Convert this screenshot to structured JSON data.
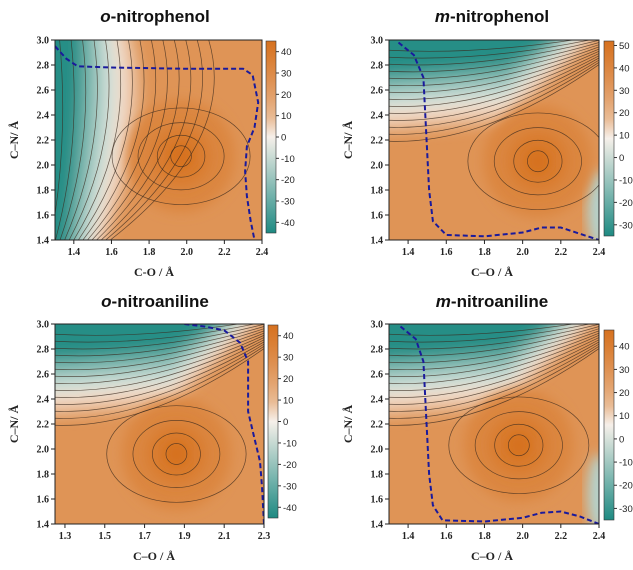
{
  "colors": {
    "low": "#1e8a82",
    "mid": "#f6f0ea",
    "high": "#d6711f",
    "contour": "#3a2a1e",
    "dashed_path": "#1a1a9c"
  },
  "chart_data": [
    {
      "type": "heatmap",
      "title_prefix": "o",
      "title_suffix": "-nitrophenol",
      "xlabel": "C-O / Å",
      "ylabel": "C–N/ Å",
      "xlim": [
        1.3,
        2.4
      ],
      "ylim": [
        1.4,
        3.0
      ],
      "x_ticks": [
        "1.4",
        "1.6",
        "1.8",
        "2.0",
        "2.2",
        "2.4"
      ],
      "y_ticks": [
        "1.4",
        "1.6",
        "1.8",
        "2.0",
        "2.2",
        "2.4",
        "2.6",
        "2.8",
        "3.0"
      ],
      "colorbar_ticks": [
        "40",
        "30",
        "20",
        "10",
        "0",
        "-10",
        "-20",
        "-30",
        "-40"
      ],
      "colorbar_range": [
        -45,
        45
      ],
      "minimum": {
        "x": 1.97,
        "y": 2.07
      },
      "path": [
        [
          1.3,
          2.95
        ],
        [
          1.36,
          2.85
        ],
        [
          1.42,
          2.79
        ],
        [
          1.6,
          2.78
        ],
        [
          2.0,
          2.77
        ],
        [
          2.3,
          2.77
        ],
        [
          2.35,
          2.72
        ],
        [
          2.38,
          2.5
        ],
        [
          2.36,
          2.3
        ],
        [
          2.32,
          2.15
        ],
        [
          2.31,
          1.95
        ],
        [
          2.32,
          1.75
        ],
        [
          2.34,
          1.55
        ],
        [
          2.36,
          1.4
        ]
      ]
    },
    {
      "type": "heatmap",
      "title_prefix": "m",
      "title_suffix": "-nitrophenol",
      "xlabel": "C–O / Å",
      "ylabel": "C–N/ Å",
      "xlim": [
        1.3,
        2.4
      ],
      "ylim": [
        1.4,
        3.0
      ],
      "x_ticks": [
        "1.4",
        "1.6",
        "1.8",
        "2.0",
        "2.2",
        "2.4"
      ],
      "y_ticks": [
        "1.4",
        "1.6",
        "1.8",
        "2.0",
        "2.2",
        "2.4",
        "2.6",
        "2.8",
        "3.0"
      ],
      "colorbar_ticks": [
        "50",
        "40",
        "30",
        "20",
        "10",
        "0",
        "-10",
        "-20",
        "-30"
      ],
      "colorbar_range": [
        -35,
        52
      ],
      "minimum": {
        "x": 2.08,
        "y": 2.03
      },
      "path": [
        [
          1.35,
          2.98
        ],
        [
          1.43,
          2.88
        ],
        [
          1.48,
          2.7
        ],
        [
          1.49,
          2.4
        ],
        [
          1.5,
          2.1
        ],
        [
          1.51,
          1.8
        ],
        [
          1.53,
          1.55
        ],
        [
          1.6,
          1.44
        ],
        [
          1.8,
          1.43
        ],
        [
          2.0,
          1.46
        ],
        [
          2.1,
          1.5
        ],
        [
          2.2,
          1.5
        ],
        [
          2.3,
          1.45
        ],
        [
          2.4,
          1.4
        ]
      ]
    },
    {
      "type": "heatmap",
      "title_prefix": "o",
      "title_suffix": "-nitroaniline",
      "xlabel": "C–O / Å",
      "ylabel": "C–N/ Å",
      "xlim": [
        1.25,
        2.3
      ],
      "ylim": [
        1.4,
        3.0
      ],
      "x_ticks": [
        "1.3",
        "1.5",
        "1.7",
        "1.9",
        "2.1",
        "2.3"
      ],
      "y_ticks": [
        "1.4",
        "1.6",
        "1.8",
        "2.0",
        "2.2",
        "2.4",
        "2.6",
        "2.8",
        "3.0"
      ],
      "colorbar_ticks": [
        "40",
        "30",
        "20",
        "10",
        "0",
        "-10",
        "-20",
        "-30",
        "-40"
      ],
      "colorbar_range": [
        -45,
        45
      ],
      "minimum": {
        "x": 1.86,
        "y": 1.96
      },
      "path": [
        [
          1.9,
          3.0
        ],
        [
          2.0,
          2.98
        ],
        [
          2.1,
          2.95
        ],
        [
          2.18,
          2.85
        ],
        [
          2.22,
          2.7
        ],
        [
          2.22,
          2.5
        ],
        [
          2.22,
          2.3
        ],
        [
          2.25,
          2.1
        ],
        [
          2.28,
          1.9
        ],
        [
          2.29,
          1.7
        ],
        [
          2.3,
          1.4
        ]
      ]
    },
    {
      "type": "heatmap",
      "title_prefix": "m",
      "title_suffix": "-nitroaniline",
      "xlabel": "C–O / Å",
      "ylabel": "C–N/ Å",
      "xlim": [
        1.3,
        2.4
      ],
      "ylim": [
        1.4,
        3.0
      ],
      "x_ticks": [
        "1.4",
        "1.6",
        "1.8",
        "2.0",
        "2.2",
        "2.4"
      ],
      "y_ticks": [
        "1.4",
        "1.6",
        "1.8",
        "2.0",
        "2.2",
        "2.4",
        "2.6",
        "2.8",
        "3.0"
      ],
      "colorbar_ticks": [
        "40",
        "30",
        "20",
        "10",
        "0",
        "-10",
        "-20",
        "-30"
      ],
      "colorbar_range": [
        -35,
        47
      ],
      "minimum": {
        "x": 1.98,
        "y": 2.03
      },
      "path": [
        [
          1.36,
          2.98
        ],
        [
          1.44,
          2.88
        ],
        [
          1.48,
          2.7
        ],
        [
          1.49,
          2.4
        ],
        [
          1.5,
          2.1
        ],
        [
          1.51,
          1.8
        ],
        [
          1.53,
          1.55
        ],
        [
          1.58,
          1.43
        ],
        [
          1.8,
          1.42
        ],
        [
          2.0,
          1.45
        ],
        [
          2.1,
          1.49
        ],
        [
          2.2,
          1.5
        ],
        [
          2.3,
          1.46
        ],
        [
          2.4,
          1.4
        ]
      ]
    }
  ]
}
